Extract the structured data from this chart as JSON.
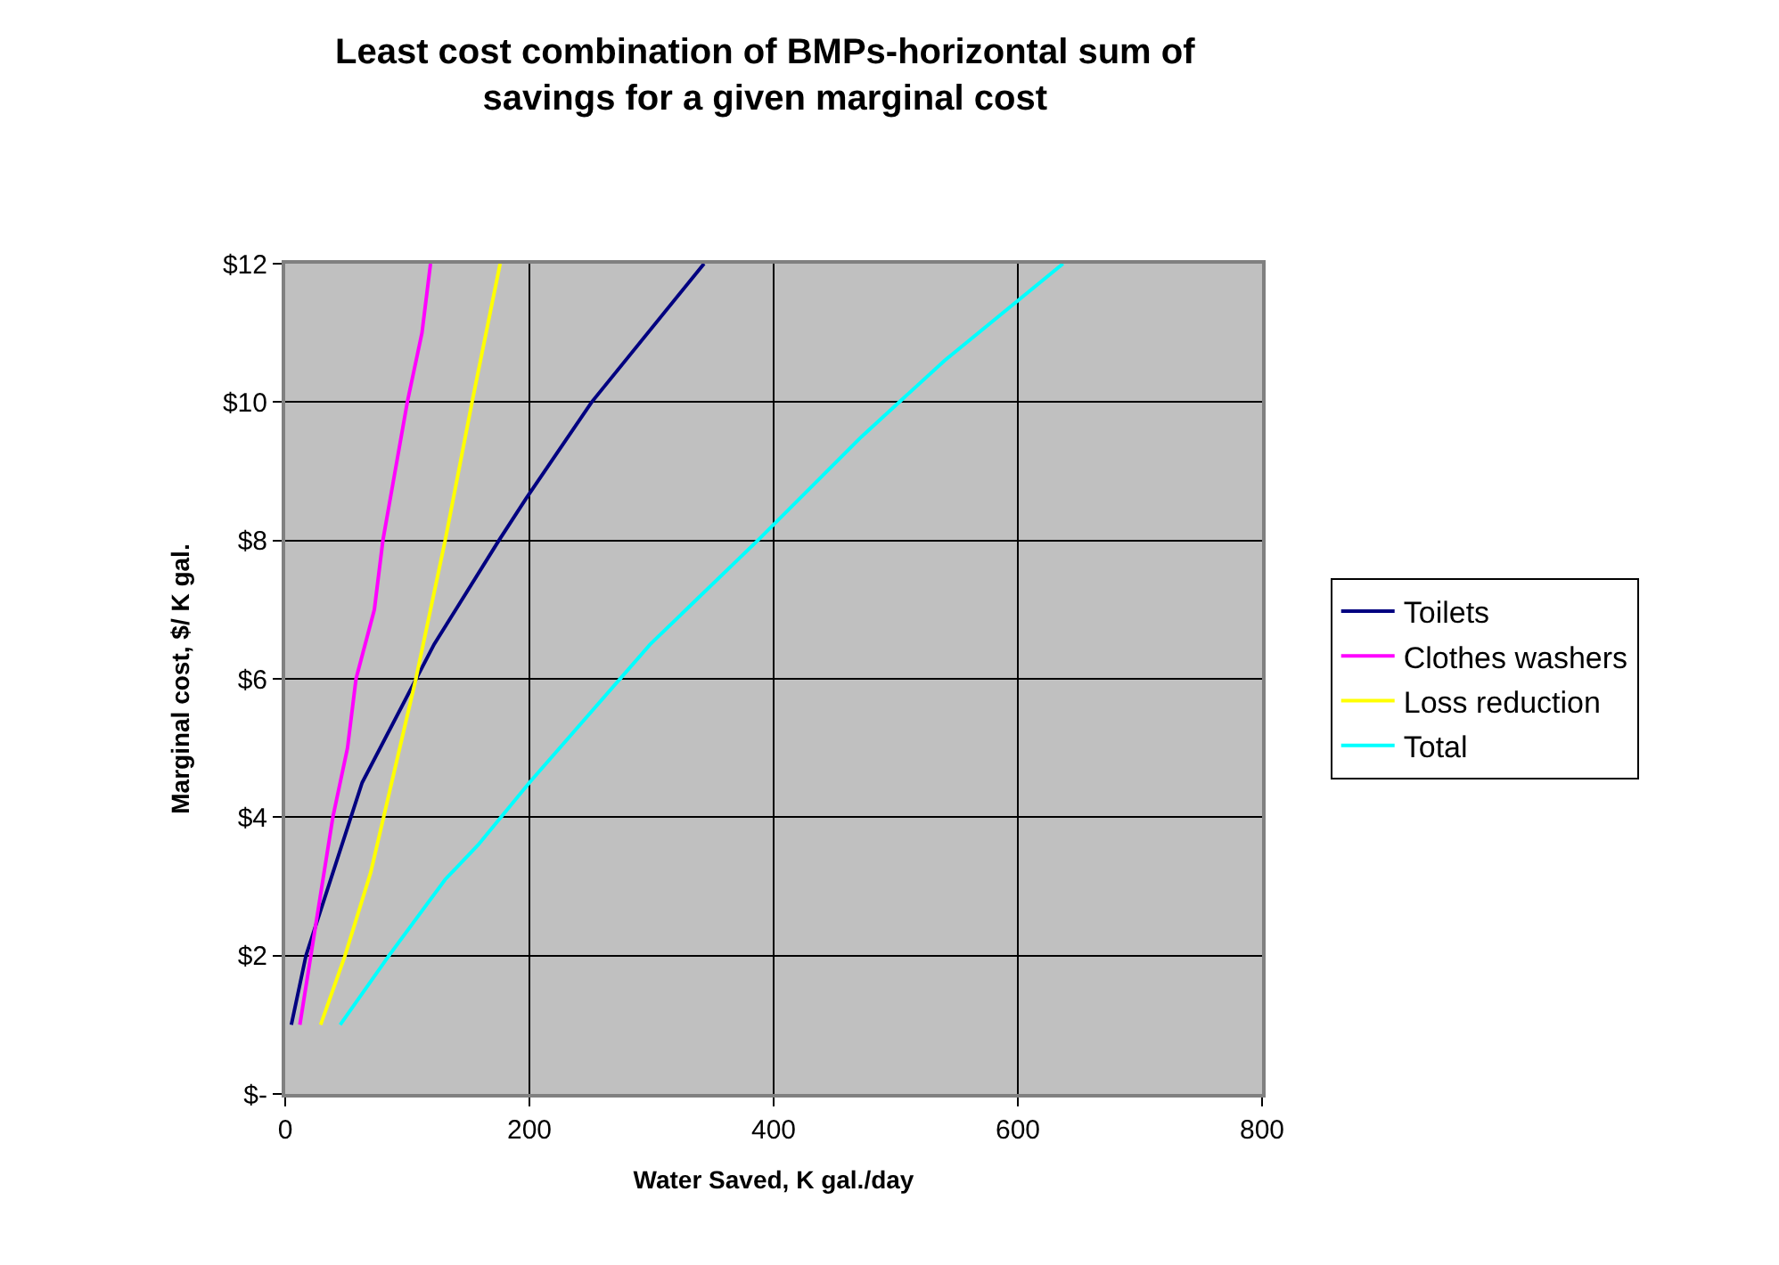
{
  "chart_data": {
    "type": "line",
    "title": "Least cost combination of BMPs-horizontal sum of\nsavings for a given marginal cost",
    "xlabel": "Water Saved, K gal./day",
    "ylabel": "Marginal cost, $/ K gal.",
    "xlim": [
      0,
      800
    ],
    "xticks": [
      0,
      200,
      400,
      600,
      800
    ],
    "ylim": [
      0,
      12
    ],
    "yticks": [
      {
        "value": 0,
        "label": "$-"
      },
      {
        "value": 2,
        "label": "$2"
      },
      {
        "value": 4,
        "label": "$4"
      },
      {
        "value": 6,
        "label": "$6"
      },
      {
        "value": 8,
        "label": "$8"
      },
      {
        "value": 10,
        "label": "$10"
      },
      {
        "value": 12,
        "label": "$12"
      }
    ],
    "grid": true,
    "legend": "right",
    "marker": "none",
    "line_style": "solid",
    "series": [
      {
        "name": "Toilets",
        "color": "#000080",
        "x": [
          5,
          17,
          63,
          122,
          175,
          197,
          251,
          343
        ],
        "values": [
          1,
          2,
          4.5,
          6.5,
          8,
          8.6,
          10,
          12
        ]
      },
      {
        "name": "Clothes washers",
        "color": "#ff00ff",
        "x": [
          12,
          39,
          51,
          58,
          73,
          80,
          90,
          100,
          112,
          119
        ],
        "values": [
          1,
          4,
          5,
          6,
          7,
          8,
          9,
          10,
          11,
          12
        ]
      },
      {
        "name": "Loss reduction",
        "color": "#ffff00",
        "x": [
          29,
          49,
          70,
          107,
          131,
          153,
          176
        ],
        "values": [
          1,
          2,
          3.2,
          6,
          8,
          10,
          12
        ]
      },
      {
        "name": "Total",
        "color": "#00ffff",
        "x": [
          45,
          85,
          131,
          158,
          200,
          299,
          387,
          472,
          540,
          637
        ],
        "values": [
          1,
          2,
          3.1,
          3.6,
          4.5,
          6.5,
          8,
          9.5,
          10.6,
          12
        ]
      }
    ]
  }
}
